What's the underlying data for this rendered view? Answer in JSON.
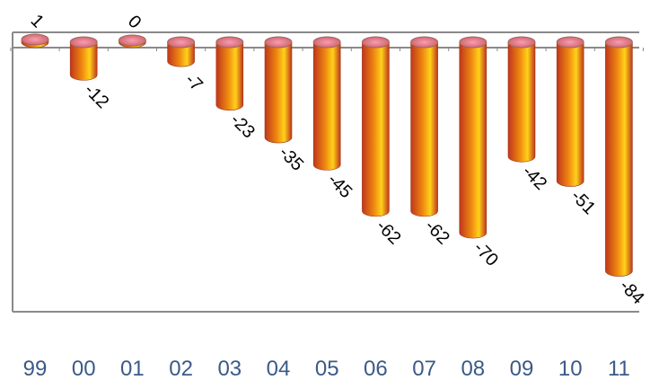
{
  "chart_data": {
    "type": "bar",
    "title": "",
    "xlabel": "",
    "ylabel": "",
    "categories": [
      "99",
      "00",
      "01",
      "02",
      "03",
      "04",
      "05",
      "06",
      "07",
      "08",
      "09",
      "10",
      "11"
    ],
    "values": [
      1,
      -12,
      0,
      -7,
      -23,
      -35,
      -45,
      -62,
      -62,
      -70,
      -42,
      -51,
      -84
    ],
    "value_labels": [
      "1",
      "-12",
      "0",
      "-7",
      "-23",
      "-35",
      "-45",
      "-62",
      "-62",
      "-70",
      "-42",
      "-51",
      "-84"
    ],
    "ylim": [
      -99,
      0
    ],
    "grid": false,
    "legend": "none",
    "colors": {
      "bar_dark": "#c0361c",
      "bar_light": "#ffd21a",
      "bar_mid": "#f08a10",
      "cap": "#e9768a",
      "axis": "#8a8a8a",
      "category_text": "#3b5a86"
    }
  }
}
